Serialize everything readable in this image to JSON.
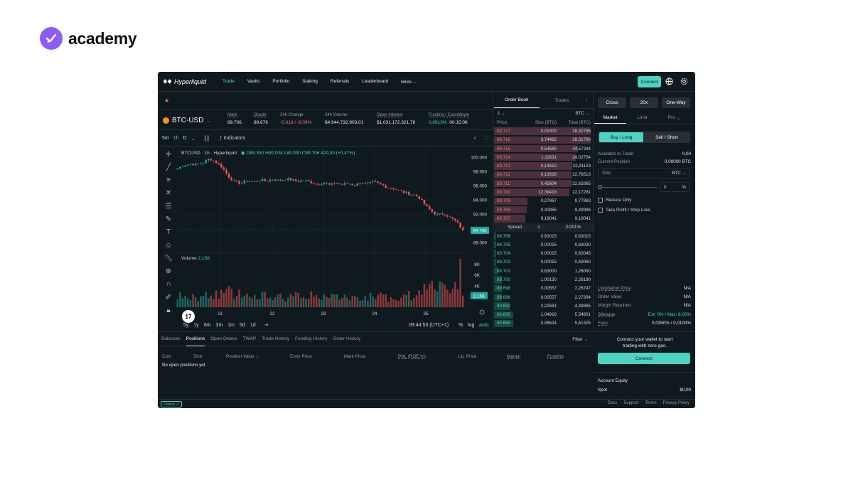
{
  "brand": {
    "name": "academy"
  },
  "nav": {
    "logo": "Hyperliquid",
    "items": [
      "Trade",
      "Vaults",
      "Portfolio",
      "Staking",
      "Referrals",
      "Leaderboard",
      "More"
    ],
    "connect": "Connect"
  },
  "ticker": {
    "symbol": "BTC-USD",
    "mark_label": "Mark",
    "mark": "89.706",
    "oracle_label": "Oracle",
    "oracle": "89.676",
    "change_label": "24h Change",
    "change": "-5.816 / -6,09%",
    "volume_label": "24h Volume",
    "volume": "$4.944.732.903,01",
    "oi_label": "Open Interest",
    "oi": "$1.031.172.321,76",
    "funding_label": "Funding / Countdown",
    "funding": "0,0013%",
    "countdown": "00:15:06"
  },
  "chart_toolbar": {
    "timeframes": [
      "5m",
      "1h",
      "D"
    ],
    "indicators": "Indicators"
  },
  "chart_legend": {
    "title": "BTCUSD · 1h · Hyperliquid",
    "o": "O89.350",
    "h": "H90.004",
    "l": "L89.000",
    "c": "C89.706",
    "chg": "420,00 (+0,47%)",
    "volume": "Volume",
    "volume_val": "2,15K"
  },
  "chart_data": {
    "type": "candlestick",
    "title": "BTCUSD · 1h · Hyperliquid",
    "x_ticks": [
      "21",
      "22",
      "23",
      "24",
      "25"
    ],
    "y_ticks": [
      "100.000",
      "98.000",
      "96.000",
      "94.000",
      "92.000",
      "90.000",
      "88.000"
    ],
    "ylim": [
      87500,
      100500
    ],
    "last_price": "89.706",
    "volume_ticks": [
      "8K",
      "6K",
      "4K"
    ],
    "volume_last": "2,15K",
    "close_path": [
      98400,
      98900,
      99050,
      98950,
      99200,
      99800,
      99350,
      98600,
      97300,
      96550,
      96300,
      96700,
      96500,
      96800,
      96650,
      96900,
      96700,
      96950,
      96800,
      96600,
      96750,
      96500,
      96200,
      96450,
      96050,
      96350,
      96150,
      96300,
      96100,
      96400,
      96250,
      96500,
      96150,
      95800,
      95600,
      95250,
      95000,
      94750,
      94400,
      93300,
      92400,
      91850,
      92100,
      91500,
      90900,
      89700
    ]
  },
  "time_bar": {
    "ranges": [
      "5y",
      "1y",
      "6m",
      "3m",
      "1m",
      "5d",
      "1d"
    ],
    "clock": "09:44:53 (UTC+1)",
    "pct": "%",
    "log": "log",
    "auto": "auto"
  },
  "orderbook": {
    "tabs": [
      "Order Book",
      "Trades"
    ],
    "size_select": "1",
    "unit": "BTC",
    "headers": [
      "Price",
      "Size (BTC)",
      "Total (BTC)"
    ],
    "asks": [
      [
        "89.717",
        "0,01000",
        "28,32796"
      ],
      [
        "89.716",
        "3,74462",
        "28,31796"
      ],
      [
        "89.715",
        "0,54580",
        "24,57334"
      ],
      [
        "89.714",
        "1,11631",
        "24,02754"
      ],
      [
        "89.713",
        "0,14610",
        "22,91123"
      ],
      [
        "89.712",
        "0,13628",
        "22,76513"
      ],
      [
        "89.711",
        "0,45604",
        "22,62885"
      ],
      [
        "89.710",
        "12,39418",
        "22,17281"
      ],
      [
        "89.709",
        "0,27867",
        "9,77863"
      ],
      [
        "89.708",
        "0,30955",
        "9,49996"
      ],
      [
        "89.707",
        "9,19041",
        "9,19041"
      ]
    ],
    "spread": {
      "label": "Spread",
      "value": "1",
      "pct": "0,001%"
    },
    "bids": [
      [
        "89.706",
        "0,63015",
        "0,63015"
      ],
      [
        "89.705",
        "0,00015",
        "0,63030"
      ],
      [
        "89.704",
        "0,00015",
        "0,63045"
      ],
      [
        "89.703",
        "0,00015",
        "0,63060"
      ],
      [
        "89.702",
        "0,63000",
        "1,26060"
      ],
      [
        "89.700",
        "1,00130",
        "2,26190"
      ],
      [
        "89.698",
        "0,00557",
        "2,26747"
      ],
      [
        "89.696",
        "0,00557",
        "2,27304"
      ],
      [
        "89.692",
        "2,22581",
        "4,49885"
      ],
      [
        "89.690",
        "1,04916",
        "5,54801"
      ],
      [
        "89.688",
        "0,06524",
        "5,61325"
      ]
    ],
    "ask_depth": [
      28.33,
      28.32,
      24.57,
      24.03,
      22.91,
      22.77,
      22.63,
      22.17,
      9.78,
      9.5,
      9.19
    ],
    "bid_depth": [
      0.63,
      0.63,
      0.63,
      0.63,
      1.26,
      2.26,
      2.27,
      2.27,
      4.5,
      5.55,
      5.61
    ]
  },
  "trade": {
    "margin_mode": "Cross",
    "leverage": "20x",
    "position_mode": "One-Way",
    "order_tabs": [
      "Market",
      "Limit",
      "Pro"
    ],
    "buy": "Buy / Long",
    "sell": "Sell / Short",
    "available_label": "Available to Trade",
    "available": "0,00",
    "position_label": "Current Position",
    "position": "0,00000 BTC",
    "size_placeholder": "Size",
    "size_unit": "BTC",
    "pct_value": "0",
    "pct_unit": "%",
    "reduce_only": "Reduce Only",
    "tpsl": "Take Profit / Stop Loss",
    "liq_label": "Liquidation Price",
    "liq": "N/A",
    "order_value_label": "Order Value",
    "order_value": "N/A",
    "margin_req_label": "Margin Required",
    "margin_req": "N/A",
    "slippage_label": "Slippage",
    "slippage": "Est: 0% / Max: 8,00%",
    "fees_label": "Fees",
    "fees": "0,0350% / 0,0100%",
    "connect_msg_1": "Connect your wallet to start",
    "connect_msg_2": "trading with zero gas.",
    "connect_btn": "Connect",
    "equity_label": "Account Equity",
    "spot_label": "Spot",
    "spot": "$0,00"
  },
  "positions": {
    "tabs": [
      "Balances",
      "Positions",
      "Open Orders",
      "TWAP",
      "Trade History",
      "Funding History",
      "Order History"
    ],
    "filter": "Filter",
    "columns": [
      "Coin",
      "Size",
      "Position Value",
      "Entry Price",
      "Mark Price",
      "PNL (ROE %)",
      "Liq. Price",
      "Margin",
      "Funding"
    ],
    "empty": "No open positions yet"
  },
  "footer": {
    "status": "Online",
    "links": [
      "Docs",
      "Support",
      "Terms",
      "Privacy Policy"
    ]
  },
  "colors": {
    "accent": "#50d2c1",
    "down": "#ed7088",
    "bg": "#0f1a1f",
    "brand": "#8b5cf6"
  }
}
